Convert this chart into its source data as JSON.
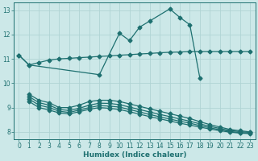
{
  "xlabel": "Humidex (Indice chaleur)",
  "bg_color": "#cce8e8",
  "grid_color": "#b0d4d4",
  "line_color": "#1e7070",
  "xlim": [
    -0.5,
    23.5
  ],
  "ylim": [
    7.7,
    13.3
  ],
  "xticks": [
    0,
    1,
    2,
    3,
    4,
    5,
    6,
    7,
    8,
    9,
    10,
    11,
    12,
    13,
    14,
    15,
    16,
    17,
    18,
    19,
    20,
    21,
    22,
    23
  ],
  "yticks": [
    8,
    9,
    10,
    11,
    12,
    13
  ],
  "curve_x": [
    0,
    1,
    8,
    10,
    11,
    12,
    13,
    15,
    16,
    17,
    18
  ],
  "curve_y": [
    11.15,
    10.75,
    10.35,
    12.05,
    11.75,
    12.3,
    12.55,
    13.05,
    12.7,
    12.4,
    10.2
  ],
  "flat_x": [
    0,
    1,
    2,
    3,
    4,
    5,
    6,
    7,
    8,
    9,
    10,
    11,
    12,
    13,
    14,
    15,
    16,
    17,
    18,
    19,
    20,
    21,
    22,
    23
  ],
  "flat_y": [
    11.15,
    10.75,
    10.85,
    10.95,
    11.0,
    11.02,
    11.05,
    11.07,
    11.1,
    11.12,
    11.15,
    11.17,
    11.2,
    11.22,
    11.25,
    11.27,
    11.28,
    11.3,
    11.3,
    11.3,
    11.3,
    11.3,
    11.3,
    11.3
  ],
  "lower_lines": [
    {
      "x": [
        1,
        2,
        3,
        4,
        5,
        6,
        7,
        8,
        9,
        10,
        11,
        12,
        13,
        14,
        15,
        16,
        17,
        18,
        19,
        20,
        21,
        22,
        23
      ],
      "y": [
        9.55,
        9.3,
        9.2,
        9.0,
        9.0,
        9.1,
        9.25,
        9.3,
        9.3,
        9.25,
        9.15,
        9.05,
        8.95,
        8.85,
        8.75,
        8.65,
        8.55,
        8.42,
        8.3,
        8.2,
        8.1,
        8.05,
        8.0
      ]
    },
    {
      "x": [
        1,
        2,
        3,
        4,
        5,
        6,
        7,
        8,
        9,
        10,
        11,
        12,
        13,
        14,
        15,
        16,
        17,
        18,
        19,
        20,
        21,
        22,
        23
      ],
      "y": [
        9.45,
        9.2,
        9.1,
        8.92,
        8.88,
        8.97,
        9.1,
        9.18,
        9.17,
        9.12,
        9.02,
        8.92,
        8.82,
        8.72,
        8.63,
        8.53,
        8.44,
        8.33,
        8.23,
        8.14,
        8.06,
        8.01,
        7.98
      ]
    },
    {
      "x": [
        1,
        2,
        3,
        4,
        5,
        6,
        7,
        8,
        9,
        10,
        11,
        12,
        13,
        14,
        15,
        16,
        17,
        18,
        19,
        20,
        21,
        22,
        23
      ],
      "y": [
        9.35,
        9.1,
        9.0,
        8.85,
        8.8,
        8.9,
        9.0,
        9.08,
        9.06,
        9.02,
        8.92,
        8.82,
        8.72,
        8.62,
        8.53,
        8.44,
        8.36,
        8.26,
        8.17,
        8.09,
        8.02,
        7.97,
        7.95
      ]
    },
    {
      "x": [
        1,
        2,
        3,
        4,
        5,
        6,
        7,
        8,
        9,
        10,
        11,
        12,
        13,
        14,
        15,
        16,
        17,
        18,
        19,
        20,
        21,
        22,
        23
      ],
      "y": [
        9.25,
        9.0,
        8.9,
        8.78,
        8.74,
        8.83,
        8.93,
        9.0,
        8.97,
        8.92,
        8.83,
        8.73,
        8.63,
        8.54,
        8.45,
        8.36,
        8.28,
        8.2,
        8.12,
        8.05,
        7.99,
        7.95,
        7.93
      ]
    }
  ]
}
